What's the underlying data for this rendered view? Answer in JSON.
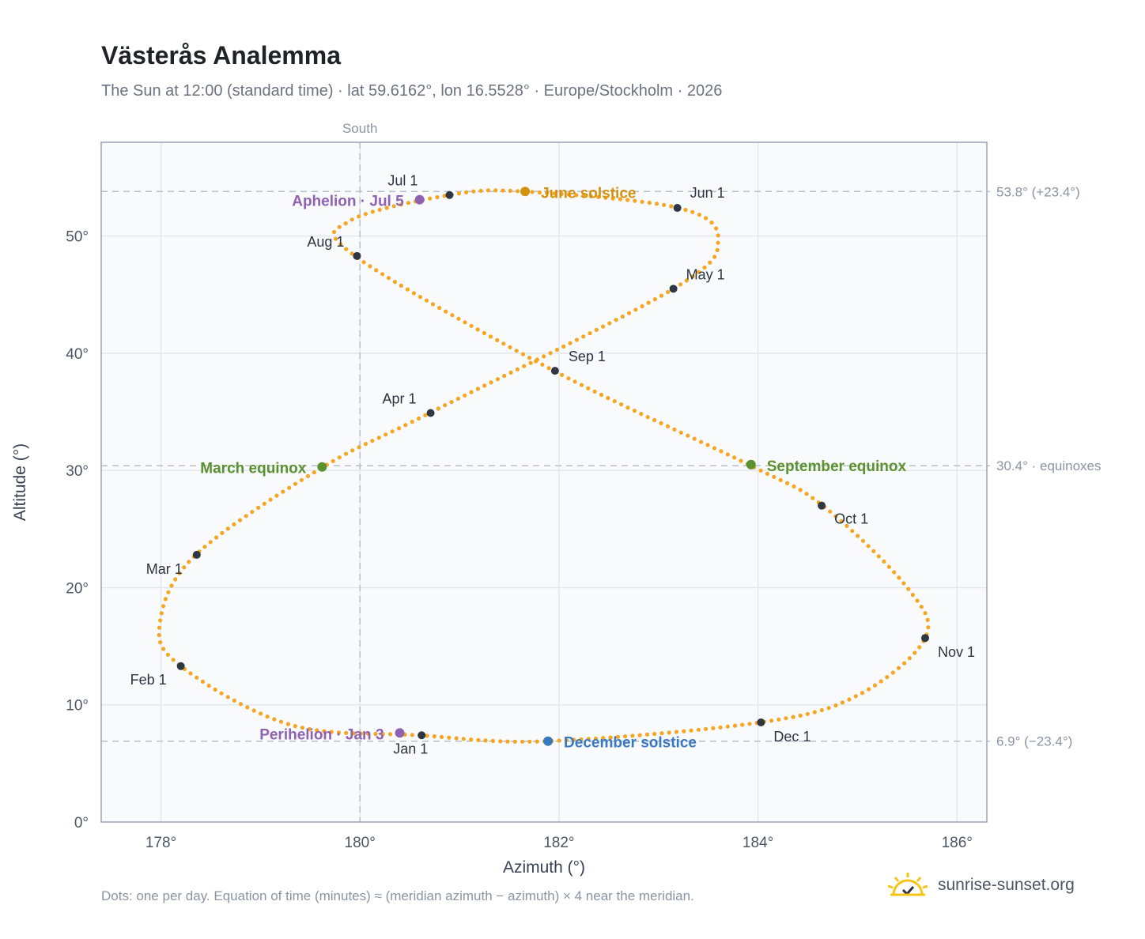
{
  "header": {
    "title": "Västerås Analemma",
    "subtitle": "The Sun at 12:00 (standard time) · lat 59.6162°, lon 16.5528° · Europe/Stockholm · 2026"
  },
  "footer": {
    "note": "Dots: one per day. Equation of time (minutes) ≈ (meridian azimuth − azimuth) × 4 near the meridian.",
    "brand": "sunrise-sunset.org",
    "brand_icon": "sun-logo-icon"
  },
  "chart_data": {
    "type": "scatter",
    "title": "Västerås Analemma",
    "xlabel": "Azimuth (°)",
    "ylabel": "Altitude (°)",
    "xlim": [
      177.4,
      186.3
    ],
    "ylim": [
      0,
      58
    ],
    "grid": true,
    "x_ticks": [
      178,
      180,
      182,
      184,
      186
    ],
    "x_tick_labels": [
      "178°",
      "180°",
      "182°",
      "184°",
      "186°"
    ],
    "y_ticks": [
      0,
      10,
      20,
      30,
      40,
      50
    ],
    "y_tick_labels": [
      "0°",
      "10°",
      "20°",
      "30°",
      "40°",
      "50°"
    ],
    "south_line": {
      "x": 180,
      "label": "South"
    },
    "reference_lines": [
      {
        "y": 53.8,
        "label": "53.8° (+23.4°)"
      },
      {
        "y": 30.4,
        "label": "30.4° · equinoxes"
      },
      {
        "y": 6.9,
        "label": "6.9° (−23.4°)"
      }
    ],
    "series": [
      {
        "dot_color": "#f5a623",
        "keypoints": [
          {
            "x": 180.6,
            "y": 7.4
          },
          {
            "x": 179.3,
            "y": 8.3
          },
          {
            "x": 178.2,
            "y": 13.3
          },
          {
            "x": 177.99,
            "y": 17.0
          },
          {
            "x": 178.35,
            "y": 22.8
          },
          {
            "x": 179.61,
            "y": 30.2
          },
          {
            "x": 180.7,
            "y": 34.9
          },
          {
            "x": 183.15,
            "y": 45.5
          },
          {
            "x": 183.6,
            "y": 49.7
          },
          {
            "x": 183.2,
            "y": 52.4
          },
          {
            "x": 181.65,
            "y": 53.8
          },
          {
            "x": 180.9,
            "y": 53.5
          },
          {
            "x": 179.9,
            "y": 51.3
          },
          {
            "x": 179.95,
            "y": 48.3
          },
          {
            "x": 181.95,
            "y": 38.5
          },
          {
            "x": 183.93,
            "y": 30.4
          },
          {
            "x": 184.65,
            "y": 27.0
          },
          {
            "x": 185.5,
            "y": 20.0
          },
          {
            "x": 185.68,
            "y": 15.7
          },
          {
            "x": 185.0,
            "y": 10.8
          },
          {
            "x": 184.02,
            "y": 8.5
          },
          {
            "x": 181.88,
            "y": 6.9
          },
          {
            "x": 180.6,
            "y": 7.4
          }
        ]
      }
    ],
    "month_markers": [
      {
        "label": "Jan 1",
        "x": 180.62,
        "y": 7.4
      },
      {
        "label": "Feb 1",
        "x": 178.2,
        "y": 13.3
      },
      {
        "label": "Mar 1",
        "x": 178.36,
        "y": 22.8
      },
      {
        "label": "Apr 1",
        "x": 180.71,
        "y": 34.9
      },
      {
        "label": "May 1",
        "x": 183.15,
        "y": 45.5
      },
      {
        "label": "Jun 1",
        "x": 183.19,
        "y": 52.4
      },
      {
        "label": "Jul 1",
        "x": 180.9,
        "y": 53.5
      },
      {
        "label": "Aug 1",
        "x": 179.97,
        "y": 48.3
      },
      {
        "label": "Sep 1",
        "x": 181.96,
        "y": 38.5
      },
      {
        "label": "Oct 1",
        "x": 184.64,
        "y": 27.0
      },
      {
        "label": "Nov 1",
        "x": 185.68,
        "y": 15.7
      },
      {
        "label": "Dec 1",
        "x": 184.03,
        "y": 8.5
      }
    ],
    "events": [
      {
        "label": "June solstice",
        "x": 181.66,
        "y": 53.8,
        "color": "#d4920f"
      },
      {
        "label": "December solstice",
        "x": 181.89,
        "y": 6.9,
        "color": "#3a78bf"
      },
      {
        "label": "March equinox",
        "x": 179.62,
        "y": 30.3,
        "color": "#5b922f"
      },
      {
        "label": "September equinox",
        "x": 183.93,
        "y": 30.5,
        "color": "#5b922f"
      },
      {
        "label": "Aphelion · Jul 5",
        "x": 180.6,
        "y": 53.1,
        "color": "#8e62b0"
      },
      {
        "label": "Perihelion · Jan 3",
        "x": 180.4,
        "y": 7.6,
        "color": "#8e62b0"
      }
    ]
  }
}
